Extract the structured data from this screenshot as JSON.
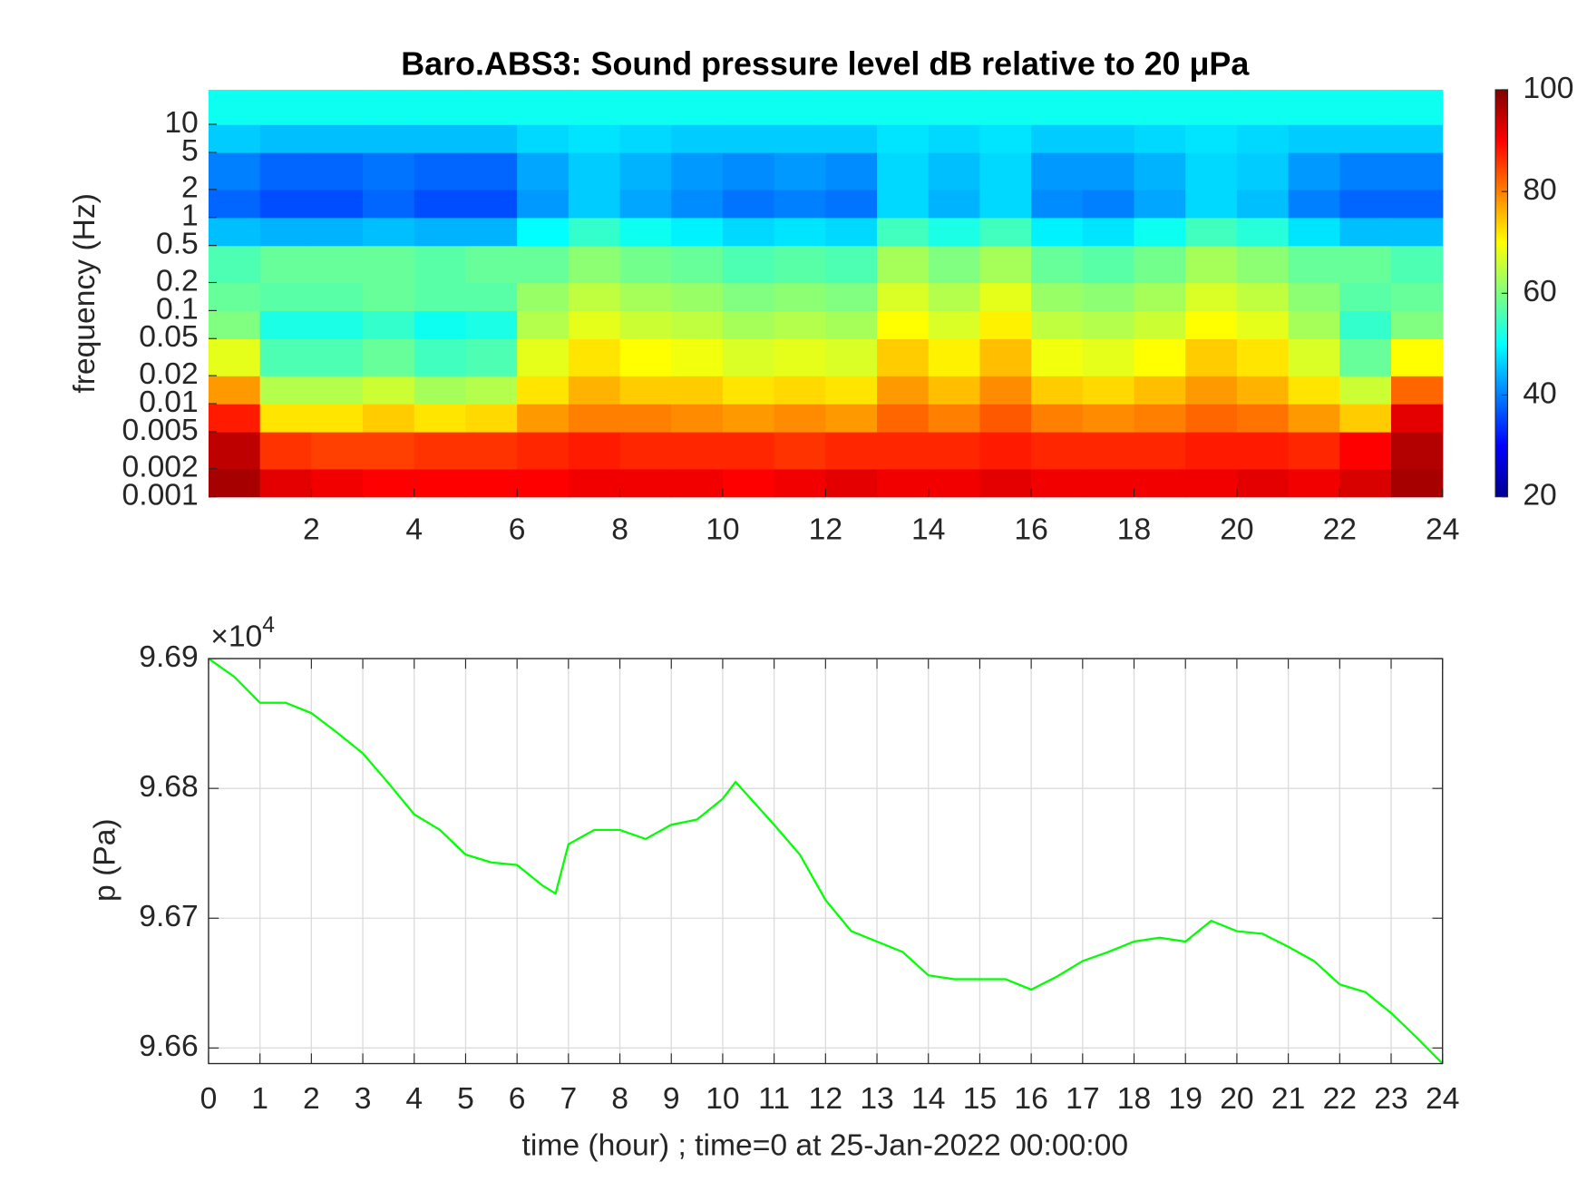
{
  "chart_data": [
    {
      "type": "heatmap",
      "title": "Baro.ABS3: Sound pressure level dB relative to 20 μPa",
      "ylabel": "frequency (Hz)",
      "yscale": "log",
      "colormap": "jet",
      "x_bins": [
        0,
        1,
        2,
        3,
        4,
        5,
        6,
        7,
        8,
        9,
        10,
        11,
        12,
        13,
        14,
        15,
        16,
        17,
        18,
        19,
        20,
        21,
        22,
        23,
        24
      ],
      "y_bins": [
        0.001,
        0.002,
        0.005,
        0.01,
        0.02,
        0.05,
        0.1,
        0.2,
        0.5,
        1,
        2,
        5,
        10,
        23.5
      ],
      "values": [
        [
          97,
          92,
          91,
          90,
          90,
          90,
          90,
          91,
          91,
          91,
          90,
          91,
          92,
          91,
          91,
          92,
          91,
          91,
          91,
          91,
          92,
          91,
          93,
          97
        ],
        [
          95,
          86,
          85,
          85,
          86,
          86,
          87,
          88,
          87,
          87,
          87,
          86,
          87,
          87,
          87,
          88,
          87,
          87,
          87,
          88,
          88,
          87,
          90,
          96
        ],
        [
          88,
          72,
          72,
          74,
          72,
          73,
          78,
          80,
          80,
          79,
          78,
          79,
          78,
          82,
          80,
          83,
          80,
          79,
          80,
          82,
          81,
          78,
          74,
          92
        ],
        [
          78,
          64,
          64,
          66,
          63,
          64,
          72,
          76,
          74,
          74,
          72,
          73,
          72,
          78,
          75,
          79,
          74,
          73,
          75,
          78,
          76,
          72,
          66,
          82
        ],
        [
          68,
          56,
          56,
          58,
          55,
          56,
          68,
          72,
          70,
          69,
          67,
          68,
          67,
          74,
          71,
          75,
          69,
          68,
          70,
          74,
          72,
          67,
          58,
          70
        ],
        [
          60,
          52,
          52,
          54,
          51,
          52,
          64,
          68,
          66,
          65,
          63,
          64,
          63,
          70,
          67,
          71,
          65,
          64,
          66,
          70,
          68,
          63,
          54,
          60
        ],
        [
          58,
          57,
          57,
          58,
          57,
          57,
          62,
          65,
          63,
          62,
          60,
          61,
          60,
          67,
          64,
          68,
          62,
          61,
          63,
          67,
          65,
          61,
          57,
          58
        ],
        [
          56,
          58,
          58,
          58,
          57,
          58,
          58,
          61,
          59,
          58,
          56,
          57,
          56,
          63,
          60,
          63,
          58,
          57,
          59,
          63,
          61,
          58,
          58,
          56
        ],
        [
          45,
          44,
          44,
          45,
          44,
          44,
          50,
          54,
          51,
          49,
          47,
          48,
          47,
          55,
          52,
          55,
          49,
          48,
          51,
          55,
          53,
          48,
          45,
          45
        ],
        [
          38,
          36,
          36,
          38,
          36,
          36,
          42,
          46,
          43,
          41,
          39,
          40,
          39,
          47,
          44,
          47,
          41,
          40,
          43,
          47,
          45,
          40,
          38,
          38
        ],
        [
          40,
          38,
          38,
          39,
          38,
          38,
          43,
          46,
          44,
          42,
          41,
          42,
          41,
          47,
          45,
          47,
          42,
          42,
          44,
          47,
          46,
          42,
          40,
          40
        ],
        [
          46,
          45,
          45,
          45,
          45,
          45,
          47,
          48,
          47,
          46,
          46,
          46,
          46,
          48,
          47,
          48,
          46,
          46,
          47,
          48,
          47,
          46,
          46,
          46
        ],
        [
          51,
          51,
          51,
          51,
          51,
          51,
          51,
          51,
          51,
          51,
          51,
          51,
          51,
          51,
          51,
          51,
          51,
          51,
          51,
          51,
          51,
          51,
          51,
          51
        ]
      ],
      "xlim": [
        0,
        24
      ],
      "xticks": [
        2,
        4,
        6,
        8,
        10,
        12,
        14,
        16,
        18,
        20,
        22,
        24
      ],
      "ylim": [
        0.001,
        23.5
      ],
      "yticks": [
        0.001,
        0.002,
        0.005,
        0.01,
        0.02,
        0.05,
        0.1,
        0.2,
        0.5,
        1,
        2,
        5,
        10
      ],
      "clim": [
        20,
        100
      ],
      "cticks": [
        20,
        40,
        60,
        80,
        100
      ]
    },
    {
      "type": "line",
      "xlabel": "time (hour) ; time=0 at 25-Jan-2022 00:00:00",
      "ylabel": "p (Pa)",
      "multiplier": {
        "base": "×10",
        "exponent": "4"
      },
      "color": "#00ff00",
      "grid": true,
      "x": [
        0,
        0.5,
        1,
        1.5,
        2,
        2.5,
        3,
        3.5,
        4,
        4.5,
        5,
        5.5,
        6,
        6.5,
        6.75,
        7,
        7.5,
        8,
        8.5,
        9,
        9.5,
        10,
        10.25,
        10.5,
        11,
        11.5,
        12,
        12.5,
        13,
        13.5,
        14,
        14.5,
        15,
        15.5,
        16,
        16.5,
        17,
        17.5,
        18,
        18.5,
        19,
        19.5,
        20,
        20.5,
        21,
        21.5,
        22,
        22.5,
        23,
        23.5,
        24
      ],
      "values": [
        96900,
        96886,
        96866,
        96866,
        96858,
        96843,
        96827,
        96804,
        96780,
        96768,
        96749,
        96743,
        96741,
        96725,
        96719,
        96757,
        96768,
        96768,
        96761,
        96772,
        96776,
        96792,
        96805,
        96794,
        96772,
        96749,
        96714,
        96690,
        96682,
        96674,
        96656,
        96653,
        96653,
        96653,
        96645,
        96655,
        96667,
        96674,
        96682,
        96685,
        96682,
        96698,
        96690,
        96688,
        96678,
        96667,
        96649,
        96643,
        96627,
        96608,
        96588
      ],
      "xlim": [
        0,
        24
      ],
      "xticks": [
        0,
        1,
        2,
        3,
        4,
        5,
        6,
        7,
        8,
        9,
        10,
        11,
        12,
        13,
        14,
        15,
        16,
        17,
        18,
        19,
        20,
        21,
        22,
        23,
        24
      ],
      "ylim": [
        96588,
        96900
      ],
      "yticks": [
        {
          "value": 96600,
          "label": "9.66"
        },
        {
          "value": 96700,
          "label": "9.67"
        },
        {
          "value": 96800,
          "label": "9.68"
        },
        {
          "value": 96900,
          "label": "9.69"
        }
      ]
    }
  ]
}
